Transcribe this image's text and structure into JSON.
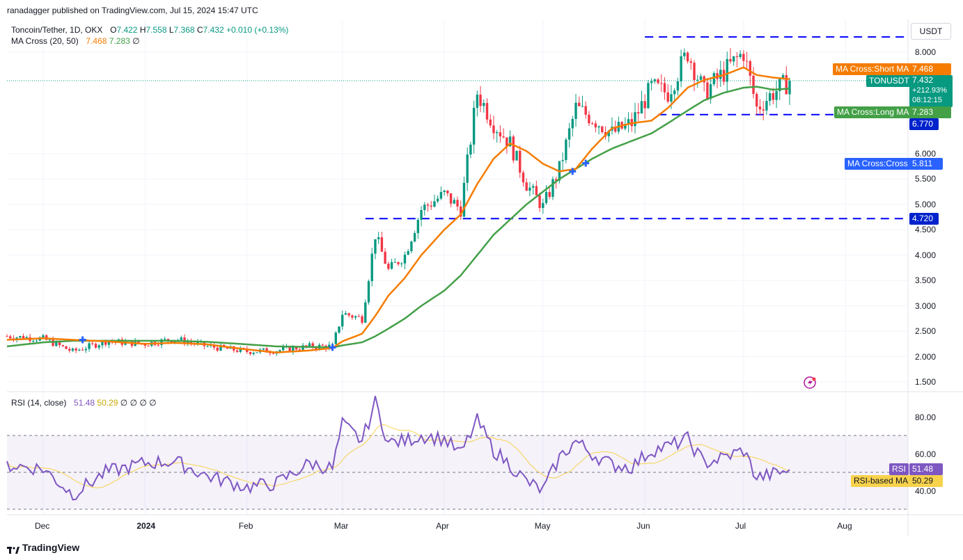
{
  "header": {
    "published": "ranadagger published on TradingView.com, Jul 15, 2024 15:47 UTC"
  },
  "legend": {
    "symbol": "Toncoin/Tether, 1D, OKX",
    "o_label": "O",
    "o": "7.422",
    "h_label": "H",
    "h": "7.558",
    "l_label": "L",
    "l": "7.368",
    "c_label": "C",
    "c": "7.432",
    "change": "+0.010 (+0.13%)",
    "ma_label": "MA Cross (20, 50)",
    "ma_short": "7.468",
    "ma_long": "7.283",
    "ma_extra": "∅",
    "rsi_label": "RSI (14, close)",
    "rsi": "51.48",
    "rsi_ma": "50.29",
    "rsi_extra": "∅ ∅ ∅ ∅"
  },
  "currency": "USDT",
  "price_axis": {
    "ticks": [
      "8.000",
      "6.000",
      "5.500",
      "5.000",
      "4.500",
      "4.000",
      "3.500",
      "3.000",
      "2.500",
      "2.000",
      "1.500"
    ]
  },
  "rsi_axis": {
    "ticks": [
      "80.00",
      "60.00",
      "40.00"
    ]
  },
  "time_axis": {
    "ticks": [
      "Dec",
      "2024",
      "Feb",
      "Mar",
      "Apr",
      "May",
      "Jun",
      "Jul",
      "Aug"
    ]
  },
  "tags": {
    "short_ma_label": "MA Cross:Short MA",
    "short_ma_value": "7.468",
    "symbol_label": "TONUSDT",
    "symbol_value": "7.432",
    "symbol_change": "+212.93%",
    "symbol_countdown": "08:12:15",
    "long_ma_label": "MA Cross:Long MA",
    "long_ma_value": "7.283",
    "level_upper_value": "6.770",
    "cross_label": "MA Cross:Cross",
    "cross_value": "5.811",
    "level_lower_value": "4.720",
    "rsi_label": "RSI",
    "rsi_value": "51.48",
    "rsi_ma_label": "RSI-based MA",
    "rsi_ma_value": "50.29"
  },
  "footer": {
    "brand": "TradingView"
  },
  "colors": {
    "up": "#089981",
    "down": "#f23645",
    "short_ma": "#f57c00",
    "long_ma": "#43a047",
    "rsi": "#7e57c2",
    "rsi_ma": "#f7d24b",
    "level": "#0000ff",
    "cross": "#2962ff"
  },
  "chart_data": {
    "type": "candlestick",
    "price_scale": {
      "min": 1.5,
      "max": 8.0
    },
    "rsi_scale": {
      "min": 30,
      "max": 90,
      "bands": [
        70,
        50,
        30
      ]
    },
    "horizontal_levels": [
      8.3,
      6.77,
      4.72
    ],
    "anchors": [
      {
        "date": "2023-11-20",
        "close": 2.4,
        "short": 2.33,
        "long": 2.2,
        "rsi": 54
      },
      {
        "date": "2023-12-01",
        "close": 2.35,
        "short": 2.36,
        "long": 2.28,
        "rsi": 52
      },
      {
        "date": "2023-12-10",
        "close": 2.1,
        "short": 2.33,
        "long": 2.31,
        "rsi": 38
      },
      {
        "date": "2023-12-20",
        "close": 2.3,
        "short": 2.3,
        "long": 2.31,
        "rsi": 50
      },
      {
        "date": "2024-01-01",
        "close": 2.25,
        "short": 2.25,
        "long": 2.31,
        "rsi": 55
      },
      {
        "date": "2024-01-10",
        "close": 2.35,
        "short": 2.27,
        "long": 2.31,
        "rsi": 56
      },
      {
        "date": "2024-01-20",
        "close": 2.2,
        "short": 2.24,
        "long": 2.29,
        "rsi": 48
      },
      {
        "date": "2024-02-01",
        "close": 2.1,
        "short": 2.14,
        "long": 2.24,
        "rsi": 42
      },
      {
        "date": "2024-02-10",
        "close": 2.12,
        "short": 2.08,
        "long": 2.2,
        "rsi": 44
      },
      {
        "date": "2024-02-20",
        "close": 2.2,
        "short": 2.12,
        "long": 2.19,
        "rsi": 55
      },
      {
        "date": "2024-02-27",
        "close": 2.2,
        "short": 2.17,
        "long": 2.18,
        "rsi": 52
      },
      {
        "date": "2024-03-01",
        "close": 2.85,
        "short": 2.3,
        "long": 2.22,
        "rsi": 76
      },
      {
        "date": "2024-03-07",
        "close": 2.75,
        "short": 2.45,
        "long": 2.28,
        "rsi": 67
      },
      {
        "date": "2024-03-11",
        "close": 4.4,
        "short": 2.8,
        "long": 2.4,
        "rsi": 88
      },
      {
        "date": "2024-03-15",
        "close": 3.7,
        "short": 3.2,
        "long": 2.55,
        "rsi": 66
      },
      {
        "date": "2024-03-20",
        "close": 4.0,
        "short": 3.55,
        "long": 2.75,
        "rsi": 67
      },
      {
        "date": "2024-03-25",
        "close": 4.9,
        "short": 4.0,
        "long": 3.0,
        "rsi": 70
      },
      {
        "date": "2024-04-01",
        "close": 5.2,
        "short": 4.5,
        "long": 3.3,
        "rsi": 68
      },
      {
        "date": "2024-04-06",
        "close": 4.9,
        "short": 4.8,
        "long": 3.6,
        "rsi": 60
      },
      {
        "date": "2024-04-11",
        "close": 7.2,
        "short": 5.4,
        "long": 4.0,
        "rsi": 78
      },
      {
        "date": "2024-04-16",
        "close": 6.6,
        "short": 5.9,
        "long": 4.4,
        "rsi": 62
      },
      {
        "date": "2024-04-21",
        "close": 6.2,
        "short": 6.2,
        "long": 4.7,
        "rsi": 54
      },
      {
        "date": "2024-04-26",
        "close": 5.4,
        "short": 6.05,
        "long": 5.0,
        "rsi": 45
      },
      {
        "date": "2024-05-01",
        "close": 4.95,
        "short": 5.8,
        "long": 5.25,
        "rsi": 40
      },
      {
        "date": "2024-05-06",
        "close": 5.7,
        "short": 5.65,
        "long": 5.5,
        "rsi": 58
      },
      {
        "date": "2024-05-11",
        "close": 6.9,
        "short": 5.7,
        "long": 5.7,
        "rsi": 67
      },
      {
        "date": "2024-05-16",
        "close": 6.7,
        "short": 6.1,
        "long": 5.9,
        "rsi": 60
      },
      {
        "date": "2024-05-22",
        "close": 6.4,
        "short": 6.5,
        "long": 6.1,
        "rsi": 54
      },
      {
        "date": "2024-05-28",
        "close": 6.6,
        "short": 6.6,
        "long": 6.25,
        "rsi": 53
      },
      {
        "date": "2024-06-03",
        "close": 7.3,
        "short": 6.65,
        "long": 6.4,
        "rsi": 62
      },
      {
        "date": "2024-06-08",
        "close": 7.2,
        "short": 6.9,
        "long": 6.6,
        "rsi": 64
      },
      {
        "date": "2024-06-14",
        "close": 8.0,
        "short": 7.3,
        "long": 6.85,
        "rsi": 68
      },
      {
        "date": "2024-06-19",
        "close": 7.2,
        "short": 7.45,
        "long": 7.05,
        "rsi": 55
      },
      {
        "date": "2024-06-25",
        "close": 7.6,
        "short": 7.55,
        "long": 7.2,
        "rsi": 58
      },
      {
        "date": "2024-07-01",
        "close": 8.0,
        "short": 7.7,
        "long": 7.3,
        "rsi": 62
      },
      {
        "date": "2024-07-05",
        "close": 6.9,
        "short": 7.55,
        "long": 7.32,
        "rsi": 47
      },
      {
        "date": "2024-07-10",
        "close": 7.2,
        "short": 7.5,
        "long": 7.26,
        "rsi": 49
      },
      {
        "date": "2024-07-15",
        "close": 7.432,
        "short": 7.468,
        "long": 7.283,
        "rsi": 51.48
      }
    ],
    "ma_cross_points": [
      {
        "date": "2023-12-13",
        "value": 2.33
      },
      {
        "date": "2024-02-27",
        "value": 2.18
      },
      {
        "date": "2024-05-10",
        "value": 5.65
      },
      {
        "date": "2024-05-14",
        "value": 5.811
      }
    ]
  }
}
